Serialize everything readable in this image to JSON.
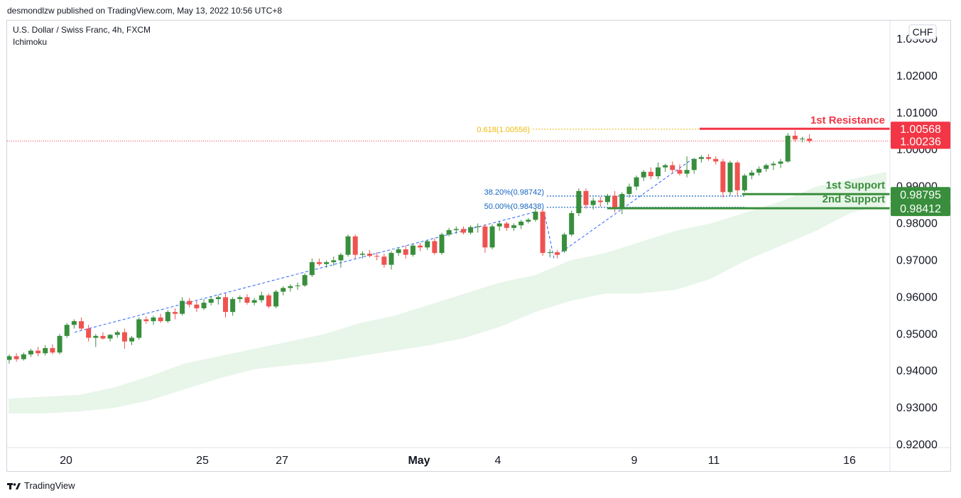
{
  "header": {
    "published_by": "desmondlzw published on TradingView.com, May 13, 2022 10:56 UTC+8"
  },
  "footer": {
    "brand": "TradingView",
    "logo": "tradingview-logo-icon"
  },
  "legend": {
    "symbol": "U.S. Dollar / Swiss Franc, 4h, FXCM",
    "indicator": "Ichimoku"
  },
  "currency_button": "CHF",
  "colors": {
    "up": "#388e3c",
    "down": "#ef5350",
    "resistance": "#f23645",
    "support": "#388e3c",
    "fib_gold": "#f0b90b",
    "fib_blue": "#2962ff",
    "cloud": "#e8f5e9",
    "trendline": "#2962ff",
    "last_price": "#f23645"
  },
  "chart_data": {
    "type": "candlestick",
    "title": "U.S. Dollar / Swiss Franc, 4h, FXCM",
    "ylim": [
      0.92,
      1.03
    ],
    "y_ticks": [
      "1.03000",
      "1.02000",
      "1.01000",
      "1.00000",
      "0.99000",
      "0.98000",
      "0.97000",
      "0.96000",
      "0.95000",
      "0.94000",
      "0.93000",
      "0.92000"
    ],
    "x_ticks": [
      "20",
      "25",
      "27",
      "May",
      "4",
      "9",
      "11",
      "16"
    ],
    "candles": [
      {
        "o": 0.943,
        "h": 0.9445,
        "l": 0.942,
        "c": 0.944
      },
      {
        "o": 0.944,
        "h": 0.9448,
        "l": 0.9425,
        "c": 0.9432
      },
      {
        "o": 0.9432,
        "h": 0.945,
        "l": 0.9428,
        "c": 0.9445
      },
      {
        "o": 0.9445,
        "h": 0.946,
        "l": 0.9438,
        "c": 0.9455
      },
      {
        "o": 0.9455,
        "h": 0.9465,
        "l": 0.944,
        "c": 0.9448
      },
      {
        "o": 0.9448,
        "h": 0.947,
        "l": 0.9442,
        "c": 0.9462
      },
      {
        "o": 0.9462,
        "h": 0.9472,
        "l": 0.9445,
        "c": 0.945
      },
      {
        "o": 0.945,
        "h": 0.95,
        "l": 0.9445,
        "c": 0.9495
      },
      {
        "o": 0.9495,
        "h": 0.953,
        "l": 0.949,
        "c": 0.9525
      },
      {
        "o": 0.9525,
        "h": 0.954,
        "l": 0.9515,
        "c": 0.9535
      },
      {
        "o": 0.9535,
        "h": 0.9545,
        "l": 0.951,
        "c": 0.9515
      },
      {
        "o": 0.9515,
        "h": 0.9525,
        "l": 0.948,
        "c": 0.949
      },
      {
        "o": 0.949,
        "h": 0.95,
        "l": 0.9465,
        "c": 0.9495
      },
      {
        "o": 0.9495,
        "h": 0.9505,
        "l": 0.9485,
        "c": 0.9488
      },
      {
        "o": 0.9488,
        "h": 0.95,
        "l": 0.948,
        "c": 0.9498
      },
      {
        "o": 0.9498,
        "h": 0.951,
        "l": 0.949,
        "c": 0.9505
      },
      {
        "o": 0.9505,
        "h": 0.9515,
        "l": 0.946,
        "c": 0.948
      },
      {
        "o": 0.948,
        "h": 0.9495,
        "l": 0.947,
        "c": 0.949
      },
      {
        "o": 0.949,
        "h": 0.9545,
        "l": 0.9485,
        "c": 0.954
      },
      {
        "o": 0.954,
        "h": 0.9548,
        "l": 0.9528,
        "c": 0.9535
      },
      {
        "o": 0.9535,
        "h": 0.955,
        "l": 0.9525,
        "c": 0.9545
      },
      {
        "o": 0.9545,
        "h": 0.9555,
        "l": 0.953,
        "c": 0.9535
      },
      {
        "o": 0.9535,
        "h": 0.9565,
        "l": 0.953,
        "c": 0.956
      },
      {
        "o": 0.956,
        "h": 0.957,
        "l": 0.954,
        "c": 0.9555
      },
      {
        "o": 0.9555,
        "h": 0.96,
        "l": 0.955,
        "c": 0.959
      },
      {
        "o": 0.959,
        "h": 0.9598,
        "l": 0.9572,
        "c": 0.958
      },
      {
        "o": 0.958,
        "h": 0.959,
        "l": 0.956,
        "c": 0.957
      },
      {
        "o": 0.957,
        "h": 0.9595,
        "l": 0.9565,
        "c": 0.9585
      },
      {
        "o": 0.9585,
        "h": 0.9602,
        "l": 0.9578,
        "c": 0.9595
      },
      {
        "o": 0.9595,
        "h": 0.9605,
        "l": 0.958,
        "c": 0.96
      },
      {
        "o": 0.96,
        "h": 0.961,
        "l": 0.9545,
        "c": 0.956
      },
      {
        "o": 0.956,
        "h": 0.96,
        "l": 0.955,
        "c": 0.9595
      },
      {
        "o": 0.9595,
        "h": 0.9605,
        "l": 0.9585,
        "c": 0.96
      },
      {
        "o": 0.96,
        "h": 0.9608,
        "l": 0.958,
        "c": 0.9585
      },
      {
        "o": 0.9585,
        "h": 0.9598,
        "l": 0.9578,
        "c": 0.9592
      },
      {
        "o": 0.9592,
        "h": 0.9615,
        "l": 0.9585,
        "c": 0.9605
      },
      {
        "o": 0.9605,
        "h": 0.961,
        "l": 0.957,
        "c": 0.9575
      },
      {
        "o": 0.9575,
        "h": 0.962,
        "l": 0.957,
        "c": 0.9615
      },
      {
        "o": 0.9615,
        "h": 0.963,
        "l": 0.9605,
        "c": 0.9625
      },
      {
        "o": 0.9625,
        "h": 0.9635,
        "l": 0.9615,
        "c": 0.963
      },
      {
        "o": 0.963,
        "h": 0.964,
        "l": 0.962,
        "c": 0.9632
      },
      {
        "o": 0.9632,
        "h": 0.9665,
        "l": 0.9628,
        "c": 0.966
      },
      {
        "o": 0.966,
        "h": 0.9705,
        "l": 0.9655,
        "c": 0.9695
      },
      {
        "o": 0.9695,
        "h": 0.9705,
        "l": 0.9685,
        "c": 0.969
      },
      {
        "o": 0.969,
        "h": 0.97,
        "l": 0.968,
        "c": 0.9695
      },
      {
        "o": 0.9695,
        "h": 0.971,
        "l": 0.9685,
        "c": 0.97
      },
      {
        "o": 0.97,
        "h": 0.972,
        "l": 0.968,
        "c": 0.9715
      },
      {
        "o": 0.9715,
        "h": 0.977,
        "l": 0.971,
        "c": 0.9765
      },
      {
        "o": 0.9765,
        "h": 0.977,
        "l": 0.9705,
        "c": 0.9715
      },
      {
        "o": 0.9715,
        "h": 0.9725,
        "l": 0.9705,
        "c": 0.9718
      },
      {
        "o": 0.9718,
        "h": 0.9728,
        "l": 0.9708,
        "c": 0.9712
      },
      {
        "o": 0.9712,
        "h": 0.9722,
        "l": 0.97,
        "c": 0.971
      },
      {
        "o": 0.971,
        "h": 0.9718,
        "l": 0.968,
        "c": 0.9688
      },
      {
        "o": 0.9688,
        "h": 0.9725,
        "l": 0.9675,
        "c": 0.972
      },
      {
        "o": 0.972,
        "h": 0.9735,
        "l": 0.9712,
        "c": 0.973
      },
      {
        "o": 0.973,
        "h": 0.974,
        "l": 0.9705,
        "c": 0.9715
      },
      {
        "o": 0.9715,
        "h": 0.9745,
        "l": 0.971,
        "c": 0.974
      },
      {
        "o": 0.974,
        "h": 0.9748,
        "l": 0.9725,
        "c": 0.9735
      },
      {
        "o": 0.9735,
        "h": 0.9755,
        "l": 0.9728,
        "c": 0.9752
      },
      {
        "o": 0.9752,
        "h": 0.976,
        "l": 0.9715,
        "c": 0.972
      },
      {
        "o": 0.972,
        "h": 0.9775,
        "l": 0.9715,
        "c": 0.977
      },
      {
        "o": 0.977,
        "h": 0.9788,
        "l": 0.9765,
        "c": 0.9782
      },
      {
        "o": 0.9782,
        "h": 0.9792,
        "l": 0.9772,
        "c": 0.9785
      },
      {
        "o": 0.9785,
        "h": 0.9792,
        "l": 0.977,
        "c": 0.9775
      },
      {
        "o": 0.9775,
        "h": 0.9795,
        "l": 0.977,
        "c": 0.979
      },
      {
        "o": 0.979,
        "h": 0.98,
        "l": 0.9775,
        "c": 0.9792
      },
      {
        "o": 0.9792,
        "h": 0.9798,
        "l": 0.972,
        "c": 0.9735
      },
      {
        "o": 0.9735,
        "h": 0.9798,
        "l": 0.973,
        "c": 0.9792
      },
      {
        "o": 0.9792,
        "h": 0.9805,
        "l": 0.978,
        "c": 0.98
      },
      {
        "o": 0.98,
        "h": 0.9805,
        "l": 0.978,
        "c": 0.9788
      },
      {
        "o": 0.9788,
        "h": 0.98,
        "l": 0.978,
        "c": 0.9795
      },
      {
        "o": 0.9795,
        "h": 0.981,
        "l": 0.9785,
        "c": 0.9805
      },
      {
        "o": 0.9805,
        "h": 0.9815,
        "l": 0.98,
        "c": 0.981
      },
      {
        "o": 0.981,
        "h": 0.984,
        "l": 0.9805,
        "c": 0.9832
      },
      {
        "o": 0.9832,
        "h": 0.9838,
        "l": 0.9712,
        "c": 0.972
      },
      {
        "o": 0.972,
        "h": 0.973,
        "l": 0.9708,
        "c": 0.9722
      },
      {
        "o": 0.9722,
        "h": 0.9728,
        "l": 0.9705,
        "c": 0.9715
      },
      {
        "o": 0.9725,
        "h": 0.9775,
        "l": 0.972,
        "c": 0.977
      },
      {
        "o": 0.977,
        "h": 0.9835,
        "l": 0.9765,
        "c": 0.9828
      },
      {
        "o": 0.9828,
        "h": 0.9895,
        "l": 0.982,
        "c": 0.9888
      },
      {
        "o": 0.9888,
        "h": 0.9895,
        "l": 0.984,
        "c": 0.985
      },
      {
        "o": 0.985,
        "h": 0.987,
        "l": 0.9838,
        "c": 0.9862
      },
      {
        "o": 0.9862,
        "h": 0.9872,
        "l": 0.9845,
        "c": 0.9858
      },
      {
        "o": 0.9858,
        "h": 0.988,
        "l": 0.985,
        "c": 0.9875
      },
      {
        "o": 0.9875,
        "h": 0.9888,
        "l": 0.983,
        "c": 0.9842
      },
      {
        "o": 0.9842,
        "h": 0.9885,
        "l": 0.9825,
        "c": 0.988
      },
      {
        "o": 0.988,
        "h": 0.9908,
        "l": 0.987,
        "c": 0.99
      },
      {
        "o": 0.99,
        "h": 0.993,
        "l": 0.989,
        "c": 0.9925
      },
      {
        "o": 0.9925,
        "h": 0.9945,
        "l": 0.9915,
        "c": 0.994
      },
      {
        "o": 0.994,
        "h": 0.9952,
        "l": 0.992,
        "c": 0.9928
      },
      {
        "o": 0.9928,
        "h": 0.9965,
        "l": 0.992,
        "c": 0.9952
      },
      {
        "o": 0.9952,
        "h": 0.9962,
        "l": 0.994,
        "c": 0.9958
      },
      {
        "o": 0.9958,
        "h": 0.9968,
        "l": 0.9935,
        "c": 0.9945
      },
      {
        "o": 0.9945,
        "h": 0.996,
        "l": 0.993,
        "c": 0.9935
      },
      {
        "o": 0.9935,
        "h": 0.9982,
        "l": 0.9925,
        "c": 0.9945
      },
      {
        "o": 0.9945,
        "h": 0.9978,
        "l": 0.9935,
        "c": 0.9975
      },
      {
        "o": 0.9975,
        "h": 0.9985,
        "l": 0.9965,
        "c": 0.998
      },
      {
        "o": 0.998,
        "h": 0.9988,
        "l": 0.997,
        "c": 0.9975
      },
      {
        "o": 0.9975,
        "h": 0.9982,
        "l": 0.996,
        "c": 0.9968
      },
      {
        "o": 0.9968,
        "h": 0.9975,
        "l": 0.987,
        "c": 0.9885
      },
      {
        "o": 0.9885,
        "h": 0.997,
        "l": 0.9875,
        "c": 0.9965
      },
      {
        "o": 0.9965,
        "h": 0.997,
        "l": 0.9875,
        "c": 0.989
      },
      {
        "o": 0.989,
        "h": 0.9935,
        "l": 0.9885,
        "c": 0.993
      },
      {
        "o": 0.993,
        "h": 0.9945,
        "l": 0.992,
        "c": 0.9938
      },
      {
        "o": 0.9938,
        "h": 0.9955,
        "l": 0.993,
        "c": 0.9948
      },
      {
        "o": 0.9948,
        "h": 0.9962,
        "l": 0.994,
        "c": 0.9958
      },
      {
        "o": 0.9958,
        "h": 0.9968,
        "l": 0.9945,
        "c": 0.9962
      },
      {
        "o": 0.9962,
        "h": 0.9975,
        "l": 0.995,
        "c": 0.9968
      },
      {
        "o": 0.9968,
        "h": 1.0045,
        "l": 0.9965,
        "c": 1.0038
      },
      {
        "o": 1.0038,
        "h": 1.0052,
        "l": 1.0022,
        "c": 1.0028
      },
      {
        "o": 1.0028,
        "h": 1.0035,
        "l": 1.002,
        "c": 1.003
      },
      {
        "o": 1.003,
        "h": 1.0042,
        "l": 1.0018,
        "c": 1.0024
      }
    ],
    "cloud": {
      "upper": [
        0.9325,
        0.933,
        0.9335,
        0.9355,
        0.9385,
        0.942,
        0.944,
        0.946,
        0.948,
        0.95,
        0.953,
        0.955,
        0.958,
        0.961,
        0.964,
        0.966,
        0.97,
        0.972,
        0.975,
        0.978,
        0.98,
        0.983,
        0.986,
        0.99,
        0.992,
        0.994
      ],
      "lower": [
        0.9285,
        0.9285,
        0.929,
        0.93,
        0.932,
        0.935,
        0.938,
        0.9405,
        0.9415,
        0.9425,
        0.944,
        0.9455,
        0.947,
        0.949,
        0.952,
        0.956,
        0.959,
        0.961,
        0.961,
        0.962,
        0.965,
        0.97,
        0.974,
        0.978,
        0.983,
        0.985
      ]
    },
    "levels": {
      "resistance_1": {
        "label": "1st Resistance",
        "value": "1.00568",
        "price": 1.00568
      },
      "support_1": {
        "label": "1st Support",
        "value": "0.98795",
        "price": 0.98795
      },
      "support_2": {
        "label": "2nd Support",
        "value": "0.98412",
        "price": 0.98412
      },
      "last_price": {
        "value": "1.00236",
        "price": 1.00236
      }
    },
    "fibonacci": {
      "fib_618": {
        "label": "0.618(1.00556)",
        "price": 1.00556
      },
      "fib_382": {
        "label": "38.20%(0.98742)",
        "price": 0.98742
      },
      "fib_500": {
        "label": "50.00%(0.98438)",
        "price": 0.98438
      }
    }
  }
}
